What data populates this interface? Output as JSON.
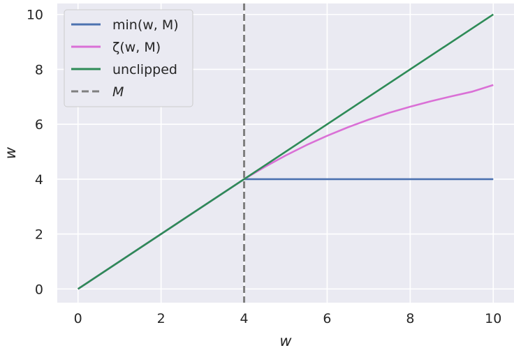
{
  "chart_data": {
    "type": "line",
    "xlabel": "w",
    "ylabel": "w",
    "xlim": [
      -0.5,
      10.5
    ],
    "ylim": [
      -0.5,
      10.4
    ],
    "xticks": [
      0,
      2,
      4,
      6,
      8,
      10
    ],
    "yticks": [
      0,
      2,
      4,
      6,
      8,
      10
    ],
    "grid": true,
    "legend_position": "top-left",
    "M": 4,
    "series": [
      {
        "name": "min(w, M)",
        "color": "#4c72b0",
        "x": [
          0,
          4,
          10
        ],
        "y": [
          0,
          4,
          4
        ]
      },
      {
        "name": "ζ(w, M)",
        "color": "#da70d6",
        "x": [
          0,
          4,
          4.5,
          5,
          5.5,
          6,
          6.5,
          7,
          7.5,
          8,
          8.5,
          9,
          9.5,
          10
        ],
        "y": [
          0,
          4,
          4.45,
          4.86,
          5.24,
          5.58,
          5.89,
          6.17,
          6.42,
          6.64,
          6.84,
          7.02,
          7.19,
          7.43
        ]
      },
      {
        "name": "unclipped",
        "color": "#2e8b57",
        "x": [
          0,
          10
        ],
        "y": [
          0,
          10
        ]
      },
      {
        "name": "M",
        "color": "#7f7f7f",
        "style": "dashed",
        "vertical_x": 4
      }
    ]
  }
}
